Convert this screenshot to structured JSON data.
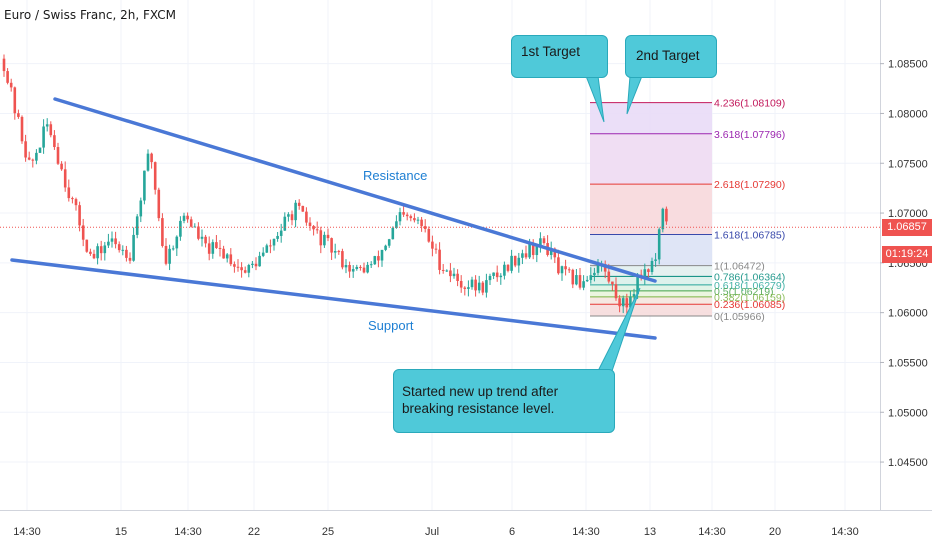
{
  "header": {
    "title": "Euro / Swiss Franc, 2h, FXCM"
  },
  "price": {
    "current_label": "1.06857",
    "countdown_label": "01:19:24",
    "current_value": 1.06857,
    "tag_color": "#ef5350"
  },
  "chart_data": {
    "type": "candlestick",
    "y_ticks": [
      "1.08500",
      "1.08000",
      "1.07500",
      "1.07000",
      "1.06500",
      "1.06000",
      "1.05500",
      "1.05000",
      "1.04500"
    ],
    "y_tick_values": [
      1.085,
      1.08,
      1.075,
      1.07,
      1.065,
      1.06,
      1.055,
      1.05,
      1.045
    ],
    "ylim": [
      1.0425,
      1.0885
    ],
    "x_ticks": [
      "14:30",
      "15",
      "14:30",
      "22",
      "25",
      "Jul",
      "6",
      "14:30",
      "13",
      "14:30",
      "20",
      "14:30"
    ],
    "colors": {
      "up": "#26a69a",
      "down": "#ef5350",
      "trendline": "#4a78d6",
      "callout": "#4fc9d9"
    },
    "annotations": {
      "resistance": "Resistance",
      "support": "Support"
    },
    "fibonacci": [
      {
        "label": "4.236(1.08109)",
        "value": 1.08109,
        "color": "#c2185b"
      },
      {
        "label": "3.618(1.07796)",
        "value": 1.07796,
        "color": "#9c27b0"
      },
      {
        "label": "2.618(1.07290)",
        "value": 1.0729,
        "color": "#e53935"
      },
      {
        "label": "1.618(1.06785)",
        "value": 1.06785,
        "color": "#3949ab"
      },
      {
        "label": "1(1.06472)",
        "value": 1.06472,
        "color": "#888888"
      },
      {
        "label": "0.786(1.06364)",
        "value": 1.06364,
        "color": "#00897b"
      },
      {
        "label": "0.618(1.06279)",
        "value": 1.06279,
        "color": "#26a69a"
      },
      {
        "label": "0.5(1.06219)",
        "value": 1.06219,
        "color": "#43a047"
      },
      {
        "label": "0.382(1.06159)",
        "value": 1.06159,
        "color": "#7cb342"
      },
      {
        "label": "0.236(1.06085)",
        "value": 1.06085,
        "color": "#e53935"
      },
      {
        "label": "0(1.05966)",
        "value": 1.05966,
        "color": "#888888"
      }
    ]
  },
  "callouts": {
    "first_target": "1st Target",
    "second_target": "2nd Target",
    "note": "Started new up trend after breaking resistance level."
  }
}
